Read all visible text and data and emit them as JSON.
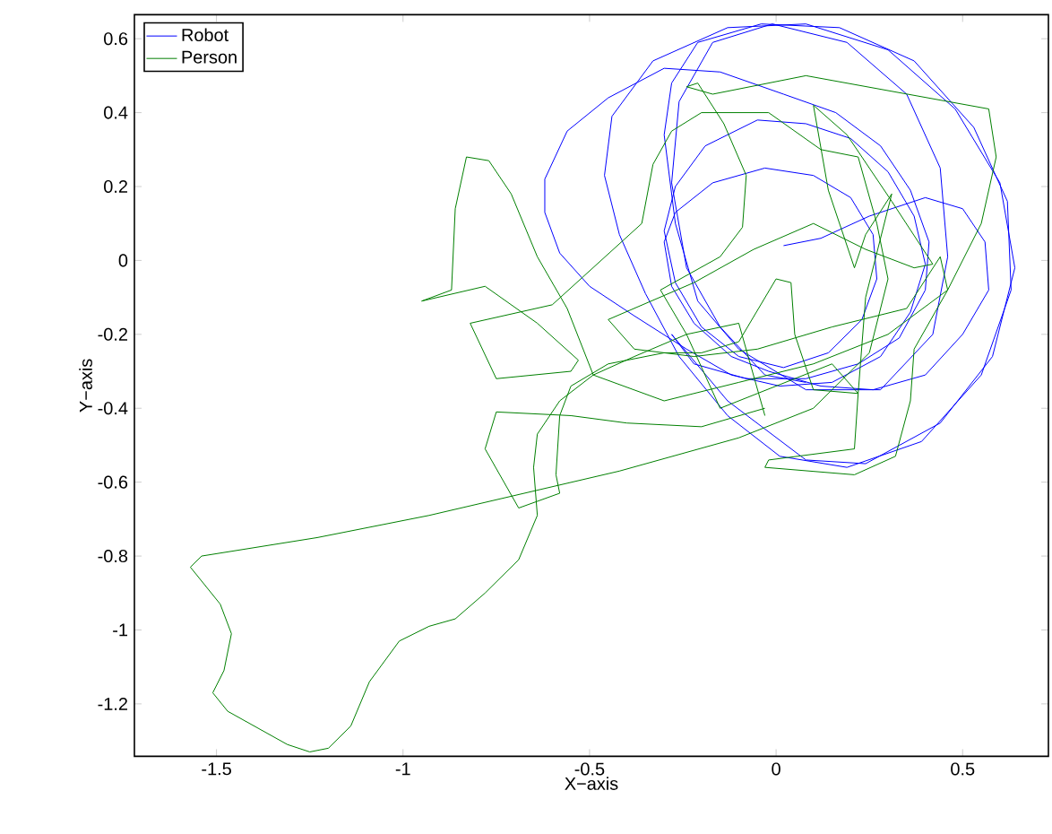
{
  "chart_data": {
    "type": "line",
    "xlabel": "X−axis",
    "ylabel": "Y−axis",
    "xlim": [
      -1.72,
      0.73
    ],
    "ylim": [
      -1.342,
      0.665
    ],
    "xticks": [
      -1.5,
      -1,
      -0.5,
      0,
      0.5
    ],
    "yticks": [
      -1.2,
      -1,
      -0.8,
      -0.6,
      -0.4,
      -0.2,
      0,
      0.2,
      0.4,
      0.6
    ],
    "grid": false,
    "legend": "top left",
    "marker": "none",
    "line_style": "solid",
    "series": [
      {
        "name": "Robot",
        "color": "#0000ff",
        "x": [
          0.02,
          0.12,
          0.25,
          0.4,
          0.5,
          0.56,
          0.57,
          0.5,
          0.4,
          0.26,
          0.12,
          -0.02,
          -0.12,
          -0.22,
          -0.28,
          -0.3,
          -0.27,
          -0.17,
          -0.03,
          0.1,
          0.2,
          0.26,
          0.27,
          0.23,
          0.14,
          0.02,
          -0.1,
          -0.2,
          -0.27,
          -0.3,
          -0.27,
          -0.19,
          -0.05,
          0.08,
          0.2,
          0.3,
          0.37,
          0.4,
          0.36,
          0.28,
          0.15,
          0.01,
          -0.12,
          -0.24,
          -0.38,
          -0.5,
          -0.58,
          -0.62,
          -0.62,
          -0.56,
          -0.45,
          -0.3,
          -0.15,
          0.02,
          0.16,
          0.28,
          0.36,
          0.41,
          0.4,
          0.33,
          0.22,
          0.08,
          -0.08,
          -0.22,
          -0.28,
          -0.13,
          0.08,
          0.24,
          0.44,
          0.58,
          0.64,
          0.6,
          0.48,
          0.3,
          0.08,
          -0.13,
          -0.33,
          -0.44,
          -0.46,
          -0.42,
          -0.35,
          -0.26,
          -0.13,
          0.01,
          0.19,
          0.39,
          0.55,
          0.63,
          0.62,
          0.53,
          0.37,
          0.17,
          -0.04,
          -0.21,
          -0.28,
          -0.3,
          -0.27,
          -0.21,
          -0.1,
          0.08,
          0.28,
          0.42,
          0.46,
          0.44,
          0.35,
          0.19,
          -0.01,
          -0.17,
          -0.26,
          -0.28,
          -0.24,
          -0.15,
          -0.03,
          0.08
        ],
        "values": [
          0.04,
          0.06,
          0.12,
          0.17,
          0.14,
          0.05,
          -0.08,
          -0.2,
          -0.31,
          -0.35,
          -0.34,
          -0.3,
          -0.26,
          -0.17,
          -0.07,
          0.05,
          0.13,
          0.21,
          0.25,
          0.23,
          0.17,
          0.07,
          -0.05,
          -0.16,
          -0.25,
          -0.29,
          -0.26,
          -0.18,
          -0.06,
          0.08,
          0.2,
          0.31,
          0.38,
          0.37,
          0.33,
          0.24,
          0.12,
          -0.01,
          -0.14,
          -0.26,
          -0.33,
          -0.34,
          -0.31,
          -0.24,
          -0.15,
          -0.07,
          0.02,
          0.13,
          0.22,
          0.35,
          0.44,
          0.52,
          0.51,
          0.45,
          0.4,
          0.31,
          0.19,
          0.05,
          -0.08,
          -0.21,
          -0.28,
          -0.32,
          -0.32,
          -0.28,
          -0.2,
          -0.38,
          -0.54,
          -0.55,
          -0.44,
          -0.26,
          -0.02,
          0.21,
          0.41,
          0.57,
          0.64,
          0.63,
          0.54,
          0.39,
          0.23,
          0.07,
          -0.09,
          -0.26,
          -0.42,
          -0.53,
          -0.56,
          -0.49,
          -0.31,
          -0.08,
          0.16,
          0.36,
          0.54,
          0.63,
          0.64,
          0.59,
          0.48,
          0.34,
          0.1,
          -0.11,
          -0.24,
          -0.35,
          -0.35,
          -0.2,
          0.01,
          0.25,
          0.45,
          0.59,
          0.64,
          0.59,
          0.43,
          0.21,
          -0.02,
          -0.18,
          -0.31,
          -0.33
        ]
      },
      {
        "name": "Person",
        "color": "#008000",
        "x": [
          -0.03,
          -0.2,
          -0.4,
          -0.55,
          -0.75,
          -0.78,
          -0.69,
          -0.58,
          -0.59,
          -0.58,
          -0.55,
          -0.45,
          -0.3,
          -0.2,
          -0.1,
          0.0,
          0.04,
          0.05,
          0.1,
          0.22,
          0.24,
          0.31,
          0.24,
          0.21,
          0.14,
          0.1,
          0.19,
          0.31,
          0.42,
          0.37,
          0.24,
          0.1,
          -0.06,
          -0.22,
          -0.45,
          -0.38,
          -0.22,
          -0.05,
          0.15,
          0.35,
          0.44,
          0.46,
          0.37,
          0.36,
          0.32,
          0.21,
          -0.03,
          -0.02,
          0.21,
          0.22,
          0.15,
          -0.05,
          -0.15,
          -0.24,
          -0.31,
          -0.15,
          -0.09,
          -0.08,
          -0.14,
          -0.21,
          -0.24,
          -0.17,
          0.08,
          0.57,
          0.59,
          0.55,
          0.46,
          0.3,
          0.1,
          -0.1,
          -0.3,
          -0.49,
          -0.56,
          -0.64,
          -0.71,
          -0.77,
          -0.83,
          -0.86,
          -0.87,
          -0.95,
          -0.78,
          -0.64,
          -0.53,
          -0.55,
          -0.75,
          -0.82,
          -0.6,
          -0.36,
          -0.33,
          -0.28,
          -0.2,
          -0.02,
          0.12,
          0.22,
          0.27,
          0.3,
          0.25,
          0.1,
          -0.1,
          -0.42,
          -0.93,
          -1.23,
          -1.54,
          -1.57,
          -1.49,
          -1.46,
          -1.48,
          -1.51,
          -1.47,
          -1.31,
          -1.25,
          -1.2,
          -1.14,
          -1.09,
          -1.01,
          -0.93,
          -0.86,
          -0.78,
          -0.69,
          -0.64,
          -0.65,
          -0.64,
          -0.58,
          -0.49,
          -0.38,
          -0.24,
          -0.1,
          -0.03
        ],
        "values": [
          -0.4,
          -0.45,
          -0.44,
          -0.42,
          -0.41,
          -0.51,
          -0.67,
          -0.63,
          -0.58,
          -0.42,
          -0.34,
          -0.28,
          -0.25,
          -0.25,
          -0.22,
          -0.05,
          -0.06,
          -0.2,
          -0.35,
          -0.36,
          -0.1,
          0.18,
          0.07,
          -0.02,
          0.19,
          0.42,
          0.34,
          0.16,
          -0.01,
          -0.02,
          0.03,
          0.1,
          0.03,
          -0.06,
          -0.16,
          -0.24,
          -0.26,
          -0.24,
          -0.18,
          -0.13,
          0.01,
          -0.08,
          -0.24,
          -0.38,
          -0.53,
          -0.58,
          -0.56,
          -0.54,
          -0.51,
          -0.36,
          -0.28,
          -0.36,
          -0.4,
          -0.2,
          -0.08,
          0.01,
          0.09,
          0.23,
          0.37,
          0.48,
          0.47,
          0.45,
          0.5,
          0.41,
          0.28,
          0.1,
          -0.08,
          -0.2,
          -0.28,
          -0.33,
          -0.38,
          -0.31,
          -0.13,
          0.01,
          0.18,
          0.27,
          0.28,
          0.14,
          -0.08,
          -0.11,
          -0.07,
          -0.17,
          -0.27,
          -0.3,
          -0.32,
          -0.17,
          -0.12,
          0.1,
          0.26,
          0.35,
          0.4,
          0.4,
          0.3,
          0.28,
          0.1,
          -0.05,
          -0.25,
          -0.4,
          -0.48,
          -0.57,
          -0.69,
          -0.75,
          -0.8,
          -0.83,
          -0.93,
          -1.01,
          -1.11,
          -1.17,
          -1.22,
          -1.31,
          -1.33,
          -1.32,
          -1.26,
          -1.14,
          -1.03,
          -0.99,
          -0.97,
          -0.9,
          -0.81,
          -0.69,
          -0.56,
          -0.47,
          -0.38,
          -0.31,
          -0.26,
          -0.2,
          -0.17,
          -0.42
        ]
      }
    ]
  }
}
